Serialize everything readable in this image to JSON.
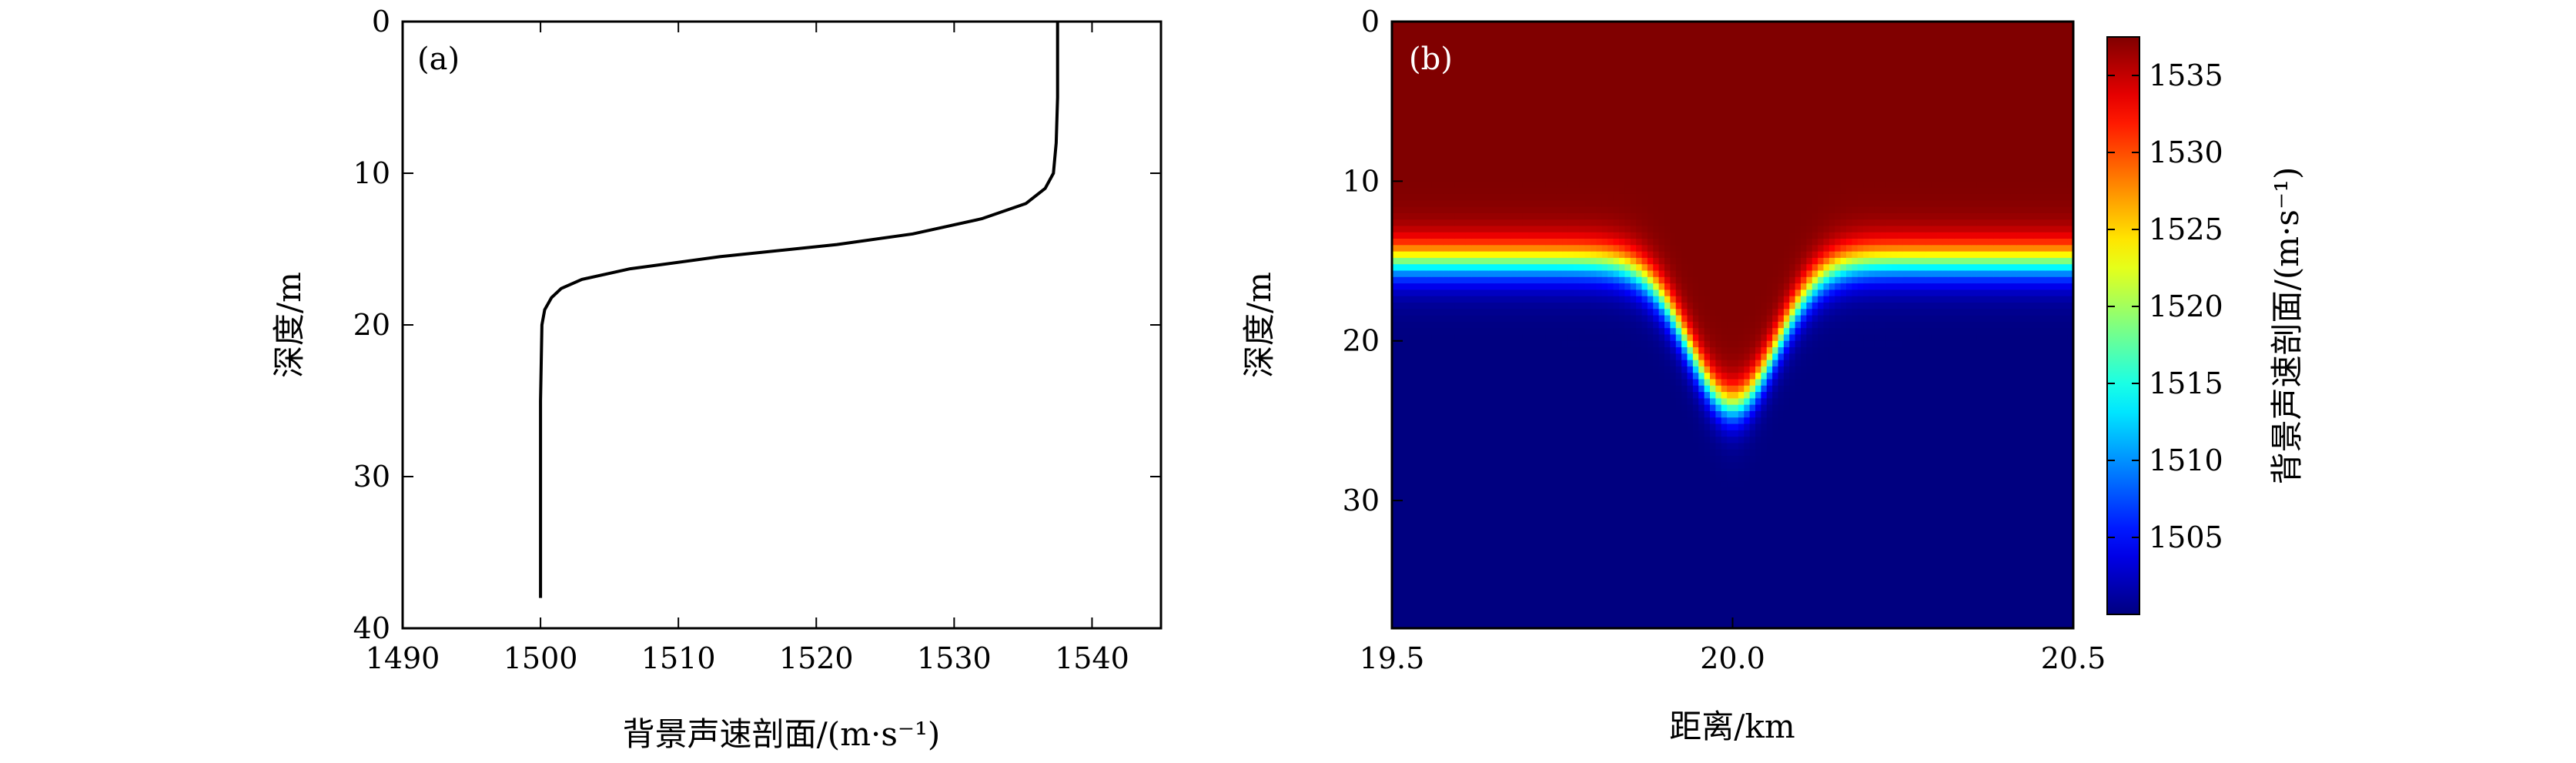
{
  "chart_data": [
    {
      "type": "line",
      "panel_label": "(a)",
      "xlabel": "背景声速剖面/(m·s⁻¹)",
      "ylabel": "深度/m",
      "xlim": [
        1490,
        1545
      ],
      "ylim": [
        40,
        0
      ],
      "xticks": [
        "1490",
        "1500",
        "1510",
        "1520",
        "1530",
        "1540"
      ],
      "yticks": [
        "0",
        "10",
        "20",
        "30",
        "40"
      ],
      "grid": false,
      "series": [
        {
          "color": "#000000",
          "x": [
            1537.5,
            1537.5,
            1537.4,
            1537.2,
            1536.6,
            1535.2,
            1532.0,
            1527.0,
            1521.5,
            1513.0,
            1506.5,
            1503.0,
            1501.5,
            1500.8,
            1500.3,
            1500.1,
            1500.0,
            1500.0
          ],
          "y": [
            0,
            5,
            8,
            10,
            11,
            12,
            13,
            14,
            14.7,
            15.5,
            16.3,
            17.0,
            17.6,
            18.2,
            19.0,
            20.0,
            25.0,
            38.0
          ]
        }
      ]
    },
    {
      "type": "heatmap",
      "panel_label": "(b)",
      "xlabel": "距离/km",
      "ylabel": "深度/m",
      "xlim": [
        19.5,
        20.5
      ],
      "ylim": [
        38,
        0
      ],
      "xticks": [
        "19.5",
        "20.0",
        "20.5"
      ],
      "yticks": [
        "0",
        "10",
        "20",
        "30"
      ],
      "colormap": "jet",
      "color_range": [
        1500,
        1537.5
      ],
      "colorbar_label": "背景声速剖面/(m·s⁻¹)",
      "colorbar_ticks": [
        "1505",
        "1510",
        "1515",
        "1520",
        "1525",
        "1530",
        "1535"
      ],
      "thermocline": {
        "background_depth": 15,
        "max_depth": 24,
        "center_km": 20.0,
        "width_km": 0.09
      }
    }
  ]
}
